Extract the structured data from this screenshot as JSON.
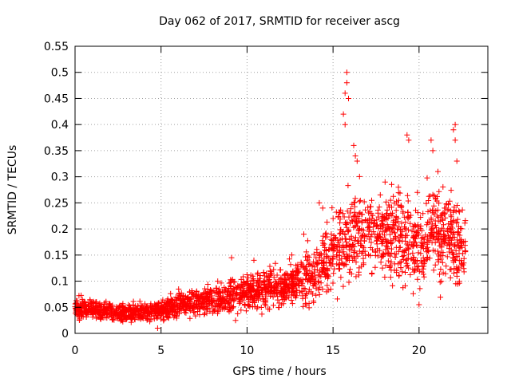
{
  "chart_data": {
    "type": "scatter",
    "title": "Day 062 of 2017, SRMTID for receiver ascg",
    "xlabel": "GPS time / hours",
    "ylabel": "SRMTID / TECUs",
    "xlim": [
      0,
      24
    ],
    "ylim": [
      0,
      0.55
    ],
    "xticks": [
      0,
      5,
      10,
      15,
      20
    ],
    "xtick_labels": [
      "0",
      "5",
      "10",
      "15",
      "20"
    ],
    "yticks": [
      0,
      0.05,
      0.1,
      0.15,
      0.2,
      0.25,
      0.3,
      0.35,
      0.4,
      0.45,
      0.5,
      0.55
    ],
    "ytick_labels": [
      "0",
      "0.05",
      "0.1",
      "0.15",
      "0.2",
      "0.25",
      "0.3",
      "0.35",
      "0.4",
      "0.45",
      "0.5",
      "0.55"
    ],
    "grid": true,
    "marker": "+",
    "series_color": "#ff0000",
    "x_range_data": [
      0,
      22.7
    ],
    "profile": [
      [
        0.0,
        0.05,
        0.015
      ],
      [
        1.0,
        0.045,
        0.012
      ],
      [
        2.0,
        0.042,
        0.012
      ],
      [
        3.0,
        0.04,
        0.012
      ],
      [
        4.0,
        0.04,
        0.012
      ],
      [
        5.0,
        0.045,
        0.012
      ],
      [
        6.0,
        0.055,
        0.015
      ],
      [
        7.0,
        0.06,
        0.018
      ],
      [
        8.0,
        0.065,
        0.02
      ],
      [
        9.0,
        0.07,
        0.022
      ],
      [
        10.0,
        0.08,
        0.022
      ],
      [
        11.0,
        0.085,
        0.025
      ],
      [
        12.0,
        0.09,
        0.025
      ],
      [
        13.0,
        0.1,
        0.03
      ],
      [
        14.0,
        0.12,
        0.04
      ],
      [
        15.0,
        0.16,
        0.05
      ],
      [
        16.0,
        0.19,
        0.06
      ],
      [
        17.0,
        0.2,
        0.05
      ],
      [
        18.0,
        0.19,
        0.05
      ],
      [
        19.0,
        0.18,
        0.06
      ],
      [
        20.0,
        0.17,
        0.05
      ],
      [
        21.0,
        0.2,
        0.06
      ],
      [
        22.0,
        0.18,
        0.06
      ],
      [
        22.7,
        0.16,
        0.05
      ]
    ],
    "highlights": [
      {
        "x": 15.8,
        "y": 0.48
      },
      {
        "x": 15.8,
        "y": 0.5
      },
      {
        "x": 15.7,
        "y": 0.46
      },
      {
        "x": 15.9,
        "y": 0.45
      },
      {
        "x": 15.6,
        "y": 0.42
      },
      {
        "x": 15.7,
        "y": 0.4
      },
      {
        "x": 16.2,
        "y": 0.36
      },
      {
        "x": 16.3,
        "y": 0.34
      },
      {
        "x": 16.4,
        "y": 0.33
      },
      {
        "x": 19.3,
        "y": 0.38
      },
      {
        "x": 19.4,
        "y": 0.37
      },
      {
        "x": 20.7,
        "y": 0.37
      },
      {
        "x": 20.8,
        "y": 0.35
      },
      {
        "x": 21.1,
        "y": 0.31
      },
      {
        "x": 22.1,
        "y": 0.4
      },
      {
        "x": 22.0,
        "y": 0.39
      },
      {
        "x": 22.1,
        "y": 0.37
      },
      {
        "x": 22.2,
        "y": 0.33
      },
      {
        "x": 20.0,
        "y": 0.055
      },
      {
        "x": 4.8,
        "y": 0.01
      },
      {
        "x": 9.1,
        "y": 0.145
      },
      {
        "x": 10.4,
        "y": 0.14
      },
      {
        "x": 12.6,
        "y": 0.15
      },
      {
        "x": 13.3,
        "y": 0.19
      },
      {
        "x": 14.2,
        "y": 0.25
      },
      {
        "x": 14.4,
        "y": 0.24
      },
      {
        "x": 18.8,
        "y": 0.28
      },
      {
        "x": 19.9,
        "y": 0.27
      }
    ]
  }
}
